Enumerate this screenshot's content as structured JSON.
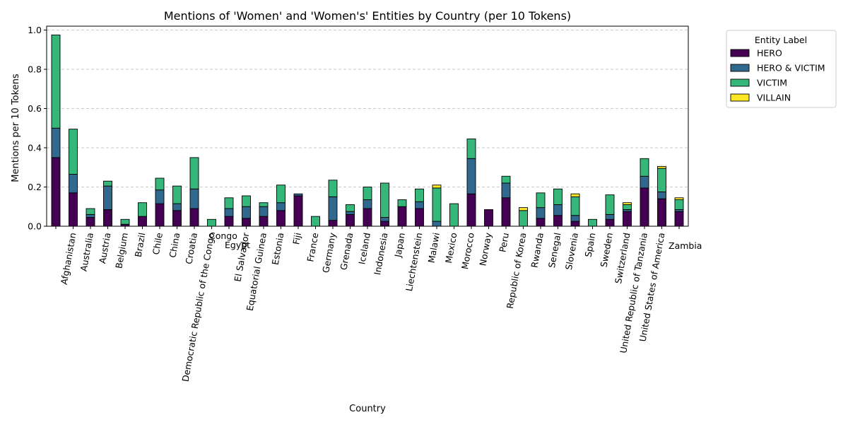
{
  "chart_data": {
    "type": "bar",
    "stacked": true,
    "title": "Mentions of 'Women' and 'Women's' Entities by Country (per 10 Tokens)",
    "xlabel": "Country",
    "ylabel": "Mentions per 10 Tokens",
    "ylim": [
      0,
      1.02
    ],
    "yticks": [
      0.0,
      0.2,
      0.4,
      0.6,
      0.8,
      1.0
    ],
    "ytick_labels": [
      "0.0",
      "0.2",
      "0.4",
      "0.6",
      "0.8",
      "1.0"
    ],
    "grid": "y-dashed",
    "legend": {
      "title": "Entity Label",
      "placement": "outside-top-right"
    },
    "categories": [
      "",
      "Afghanistan",
      "Australia",
      "Austria",
      "Belgium",
      "Brazil",
      "Chile",
      "China",
      "Croatia",
      "Democratic Republic of the Congo",
      "Egypt",
      "El Salvador",
      "Equatorial Guinea",
      "Estonia",
      "Fiji",
      "France",
      "Germany",
      "Grenada",
      "Iceland",
      "Indonesia",
      "Japan",
      "Liechtenstein",
      "Malawi",
      "Mexico",
      "Morocco",
      "Norway",
      "Peru",
      "Republic of Korea",
      "Rwanda",
      "Senegal",
      "Slovenia",
      "Spain",
      "Sweden",
      "Switzerland",
      "United Republic of Tanzania",
      "United States of America",
      "Zambia"
    ],
    "category_label_shown": [
      false,
      true,
      true,
      true,
      true,
      true,
      true,
      true,
      true,
      true,
      false,
      true,
      true,
      true,
      true,
      true,
      true,
      true,
      true,
      true,
      true,
      true,
      true,
      true,
      true,
      true,
      true,
      true,
      true,
      true,
      true,
      true,
      true,
      true,
      true,
      true,
      false
    ],
    "extra_labels": [
      "Congo",
      "Egypt",
      "Zambia"
    ],
    "series": [
      {
        "name": "HERO",
        "color": "#440154",
        "values": [
          0.35,
          0.17,
          0.045,
          0.085,
          0.01,
          0.05,
          0.115,
          0.08,
          0.09,
          0.0,
          0.05,
          0.04,
          0.05,
          0.08,
          0.155,
          0.0,
          0.03,
          0.06,
          0.09,
          0.025,
          0.1,
          0.09,
          0.0,
          0.0,
          0.165,
          0.085,
          0.145,
          0.0,
          0.04,
          0.055,
          0.025,
          0.0,
          0.035,
          0.075,
          0.195,
          0.14,
          0.075
        ]
      },
      {
        "name": "HERO & VICTIM",
        "color": "#31688e",
        "values": [
          0.15,
          0.095,
          0.015,
          0.12,
          0.0,
          0.0,
          0.07,
          0.035,
          0.1,
          0.0,
          0.04,
          0.06,
          0.05,
          0.04,
          0.01,
          0.0,
          0.12,
          0.015,
          0.045,
          0.02,
          0.0,
          0.035,
          0.025,
          0.0,
          0.18,
          0.0,
          0.075,
          0.0,
          0.055,
          0.055,
          0.03,
          0.0,
          0.025,
          0.01,
          0.06,
          0.035,
          0.01
        ]
      },
      {
        "name": "VICTIM",
        "color": "#35b779",
        "values": [
          0.475,
          0.23,
          0.03,
          0.025,
          0.025,
          0.07,
          0.06,
          0.09,
          0.16,
          0.035,
          0.055,
          0.055,
          0.02,
          0.09,
          0.0,
          0.05,
          0.085,
          0.035,
          0.065,
          0.175,
          0.035,
          0.065,
          0.17,
          0.115,
          0.1,
          0.0,
          0.035,
          0.08,
          0.075,
          0.08,
          0.095,
          0.035,
          0.1,
          0.025,
          0.09,
          0.12,
          0.05
        ]
      },
      {
        "name": "VILLAIN",
        "color": "#fde725",
        "values": [
          0.0,
          0.0,
          0.0,
          0.0,
          0.0,
          0.0,
          0.0,
          0.0,
          0.0,
          0.0,
          0.0,
          0.0,
          0.0,
          0.0,
          0.0,
          0.0,
          0.0,
          0.0,
          0.0,
          0.0,
          0.0,
          0.0,
          0.015,
          0.0,
          0.0,
          0.0,
          0.0,
          0.015,
          0.0,
          0.0,
          0.015,
          0.0,
          0.0,
          0.01,
          0.0,
          0.01,
          0.01
        ]
      }
    ]
  }
}
